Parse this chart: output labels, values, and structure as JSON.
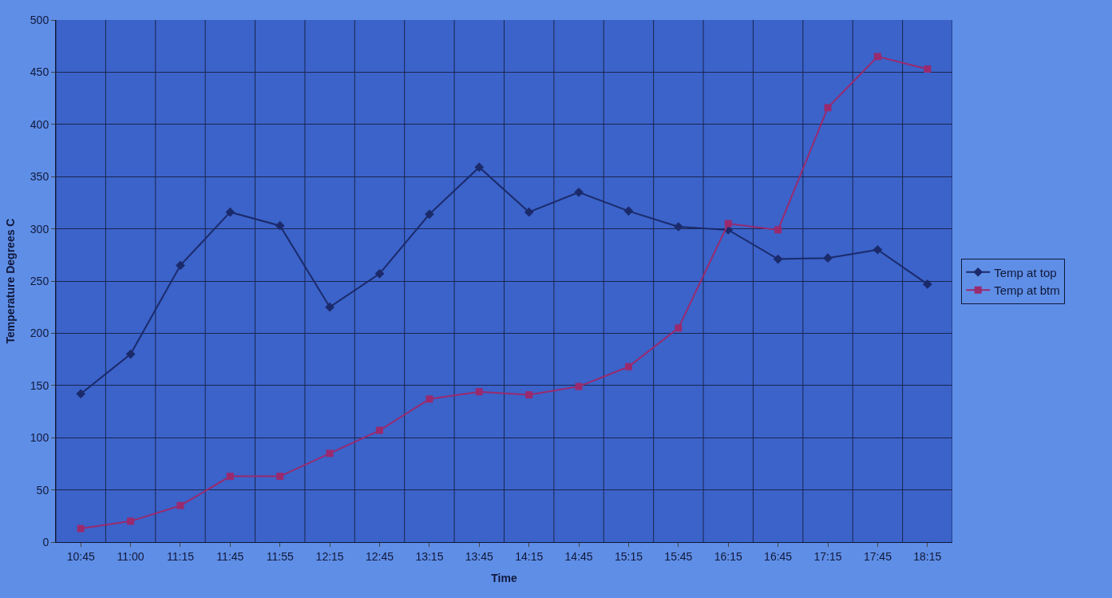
{
  "chart_data": {
    "type": "line",
    "xlabel": "Time",
    "ylabel": "Temperature Degrees C",
    "categories": [
      "10:45",
      "11:00",
      "11:15",
      "11:45",
      "11:55",
      "12:15",
      "12:45",
      "13:15",
      "13:45",
      "14:15",
      "14:45",
      "15:15",
      "15:45",
      "16:15",
      "16:45",
      "17:15",
      "17:45",
      "18:15"
    ],
    "series": [
      {
        "name": "Temp at top",
        "color": "#1b2a6b",
        "marker": "diamond",
        "values": [
          142,
          180,
          265,
          316,
          303,
          225,
          257,
          314,
          359,
          316,
          335,
          317,
          302,
          299,
          271,
          272,
          280,
          247
        ]
      },
      {
        "name": "Temp at btm",
        "color": "#9a2a6e",
        "marker": "square",
        "values": [
          13,
          20,
          35,
          63,
          63,
          85,
          107,
          137,
          144,
          141,
          149,
          168,
          205,
          305,
          299,
          416,
          465,
          453
        ]
      }
    ],
    "ylim": [
      0,
      500
    ],
    "yticks": [
      0,
      50,
      100,
      150,
      200,
      250,
      300,
      350,
      400,
      450,
      500
    ],
    "grid": true,
    "legend": "right",
    "line_style": "solid"
  }
}
